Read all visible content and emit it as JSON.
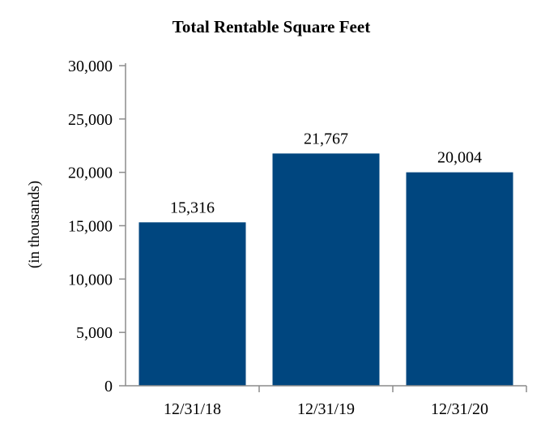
{
  "chart_data": {
    "type": "bar",
    "title": "Total Rentable Square Feet",
    "xlabel": "",
    "ylabel": "(in thousands)",
    "categories": [
      "12/31/18",
      "12/31/19",
      "12/31/20"
    ],
    "values": [
      15316,
      21767,
      20004
    ],
    "value_labels": [
      "15,316",
      "21,767",
      "20,004"
    ],
    "ylim": [
      0,
      30000
    ],
    "yticks": [
      0,
      5000,
      10000,
      15000,
      20000,
      25000,
      30000
    ],
    "ytick_labels": [
      "0",
      "5,000",
      "10,000",
      "15,000",
      "20,000",
      "25,000",
      "30,000"
    ],
    "bar_color": "#00467f",
    "grid": false,
    "legend": "none"
  }
}
